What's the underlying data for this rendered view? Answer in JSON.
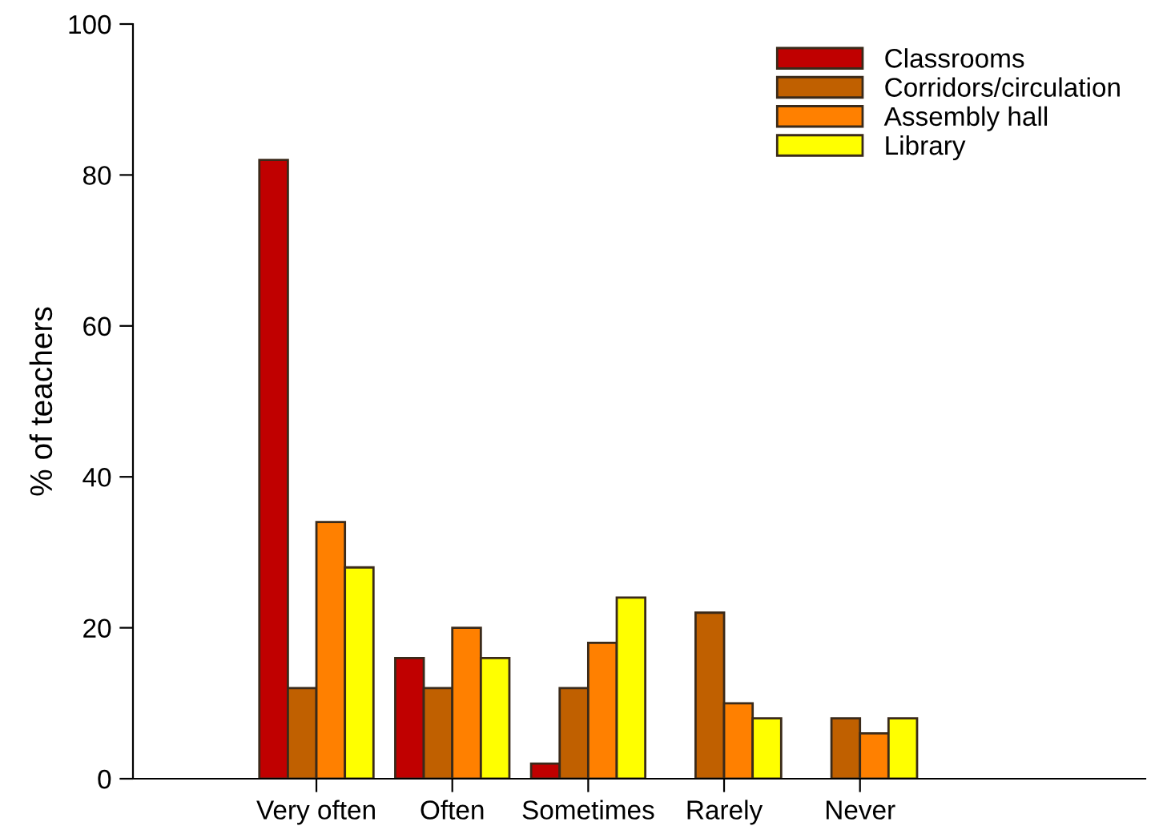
{
  "chart_data": {
    "type": "bar",
    "ylabel": "% of teachers",
    "categories": [
      "Very often",
      "Often",
      "Sometimes",
      "Rarely",
      "Never"
    ],
    "series": [
      {
        "name": "Classrooms",
        "color": "#c00000",
        "values": [
          82,
          16,
          2,
          null,
          null
        ]
      },
      {
        "name": "Corridors/circulation",
        "color": "#c06000",
        "values": [
          12,
          12,
          12,
          22,
          8
        ]
      },
      {
        "name": "Assembly hall",
        "color": "#ff8000",
        "values": [
          34,
          20,
          18,
          10,
          6
        ]
      },
      {
        "name": "Library",
        "color": "#ffff00",
        "values": [
          28,
          16,
          24,
          8,
          8
        ]
      }
    ],
    "ylim": [
      0,
      100
    ],
    "yticks": [
      0,
      20,
      40,
      60,
      80,
      100
    ],
    "grid": false,
    "legend": "top right"
  }
}
